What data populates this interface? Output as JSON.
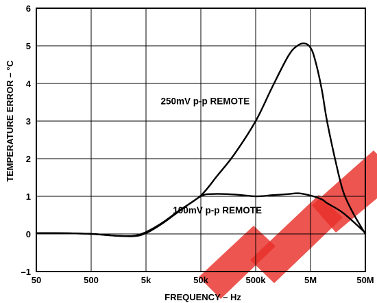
{
  "chart_data": {
    "type": "line",
    "x_scale": "log",
    "xlabel": "FREQUENCY – Hz",
    "ylabel": "TEMPERATURE ERROR – °C",
    "x_ticks": [
      {
        "value": 50,
        "label": "50"
      },
      {
        "value": 500,
        "label": "500"
      },
      {
        "value": 5000,
        "label": "5k"
      },
      {
        "value": 50000,
        "label": "50k"
      },
      {
        "value": 500000,
        "label": "500k"
      },
      {
        "value": 5000000,
        "label": "5M"
      },
      {
        "value": 50000000,
        "label": "50M"
      }
    ],
    "y_ticks": [
      {
        "value": -1,
        "label": "–1"
      },
      {
        "value": 0,
        "label": "0"
      },
      {
        "value": 1,
        "label": "1"
      },
      {
        "value": 2,
        "label": "2"
      },
      {
        "value": 3,
        "label": "3"
      },
      {
        "value": 4,
        "label": "4"
      },
      {
        "value": 5,
        "label": "5"
      },
      {
        "value": 6,
        "label": "6"
      }
    ],
    "xlim": [
      50,
      50000000
    ],
    "ylim": [
      -1,
      6
    ],
    "grid": true,
    "series": [
      {
        "name": "250mV p-p REMOTE",
        "x": [
          50,
          150,
          500,
          1500,
          3000,
          5000,
          10000,
          20000,
          50000,
          100000,
          200000,
          500000,
          1000000,
          2000000,
          3000000,
          4000000,
          5000000,
          6000000,
          8000000,
          10000000,
          15000000,
          20000000,
          30000000,
          50000000
        ],
        "y": [
          0.02,
          0.02,
          0.0,
          -0.05,
          -0.05,
          0.05,
          0.3,
          0.62,
          1.02,
          1.55,
          2.1,
          3.0,
          3.9,
          4.75,
          5.02,
          5.06,
          4.95,
          4.65,
          3.85,
          3.0,
          1.8,
          1.1,
          0.55,
          0.0
        ]
      },
      {
        "name": "100mV p-p REMOTE",
        "x": [
          50,
          150,
          500,
          1500,
          3000,
          5000,
          10000,
          20000,
          50000,
          80000,
          200000,
          500000,
          1000000,
          2000000,
          3000000,
          5000000,
          8000000,
          10000000,
          20000000,
          50000000
        ],
        "y": [
          0.02,
          0.02,
          0.0,
          -0.05,
          -0.06,
          0.02,
          0.28,
          0.6,
          1.0,
          1.06,
          1.05,
          1.0,
          1.03,
          1.06,
          1.08,
          1.02,
          0.92,
          0.82,
          0.55,
          0.03
        ]
      }
    ],
    "annotations": [
      {
        "text": "250mV p-p REMOTE",
        "x": 60000,
        "y": 3.45
      },
      {
        "text": "100mV p-p REMOTE",
        "x": 100000,
        "y": 0.55
      }
    ]
  }
}
